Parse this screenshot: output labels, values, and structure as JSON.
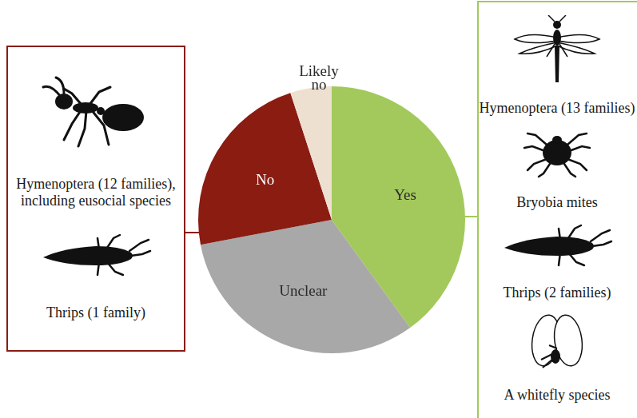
{
  "chart_data": {
    "type": "pie",
    "categories": [
      "Yes",
      "Unclear",
      "No",
      "Likely no"
    ],
    "values": [
      40,
      32,
      23,
      5
    ],
    "colors": [
      "#a3c95c",
      "#a8a8a8",
      "#8a1c12",
      "#eee0d0"
    ],
    "annotations": [
      {
        "category": "No",
        "items": [
          "Hymenoptera (12 families), including eusocial species",
          "Thrips (1 family)"
        ]
      },
      {
        "category": "Yes",
        "items": [
          "Hymenoptera (13 families)",
          "Bryobia mites",
          "Thrips (2 families)",
          "A whitefly species"
        ]
      }
    ]
  }
}
